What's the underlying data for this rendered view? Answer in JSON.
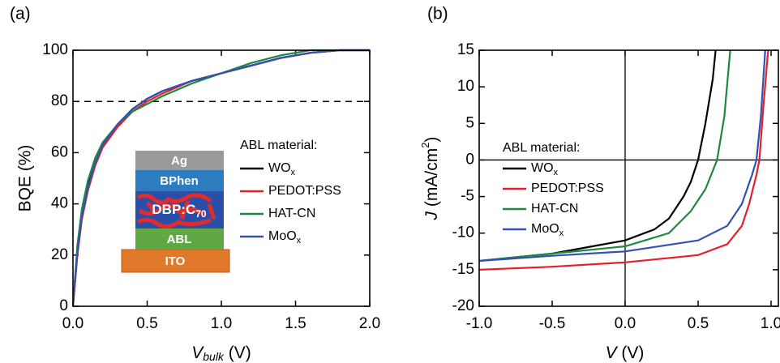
{
  "chart_data": [
    {
      "type": "line",
      "panel_label": "(a)",
      "xlabel": [
        "V",
        "bulk",
        " (V)"
      ],
      "ylabel": "BQE (%)",
      "xlim": [
        0,
        2
      ],
      "ylim": [
        0,
        100
      ],
      "xticks": [
        {
          "value": 0,
          "label": "0.0"
        },
        {
          "value": 0.5,
          "label": "0.5"
        },
        {
          "value": 1,
          "label": "1.0"
        },
        {
          "value": 1.5,
          "label": "1.5"
        },
        {
          "value": 2,
          "label": "2.0"
        }
      ],
      "yticks": [
        0,
        20,
        40,
        60,
        80,
        100
      ],
      "hline": 80,
      "legend_title": "ABL material:",
      "inset_layers": [
        [
          "Ag"
        ],
        [
          "BPhen"
        ],
        [
          "DBP:C",
          "70"
        ],
        [
          "ABL"
        ],
        [
          "ITO"
        ]
      ],
      "series": [
        {
          "name": [
            "WO",
            "x"
          ],
          "color": "#000000",
          "x": [
            0,
            0.03,
            0.06,
            0.1,
            0.15,
            0.2,
            0.3,
            0.4,
            0.5,
            0.6,
            0.8,
            1.0,
            1.2,
            1.4,
            1.6,
            1.8,
            2.0
          ],
          "values": [
            0,
            22,
            36,
            47,
            56,
            63,
            71,
            77,
            81,
            84,
            88,
            91,
            94,
            97,
            99,
            100,
            100
          ]
        },
        {
          "name": [
            "PEDOT:PSS"
          ],
          "color": "#e3202b",
          "x": [
            0,
            0.03,
            0.06,
            0.1,
            0.15,
            0.2,
            0.3,
            0.4,
            0.5,
            0.6,
            0.8,
            1.0,
            1.2,
            1.4,
            1.6,
            1.8,
            2.0
          ],
          "values": [
            0,
            20,
            34,
            45,
            55,
            62,
            70,
            76,
            80,
            83,
            88,
            91,
            94,
            97,
            99,
            100,
            100
          ]
        },
        {
          "name": [
            "HAT-CN"
          ],
          "color": "#1b8a3c",
          "x": [
            0,
            0.03,
            0.06,
            0.1,
            0.15,
            0.2,
            0.3,
            0.4,
            0.5,
            0.6,
            0.8,
            1.0,
            1.2,
            1.4,
            1.6,
            1.8,
            2.0
          ],
          "values": [
            0,
            24,
            38,
            49,
            58,
            64,
            71,
            76,
            79,
            82,
            87,
            91,
            95,
            98,
            100,
            100,
            100
          ]
        },
        {
          "name": [
            "MoO",
            "x"
          ],
          "color": "#3450b2",
          "x": [
            0,
            0.03,
            0.06,
            0.1,
            0.15,
            0.2,
            0.3,
            0.4,
            0.5,
            0.6,
            0.8,
            1.0,
            1.2,
            1.4,
            1.6,
            1.8,
            2.0
          ],
          "values": [
            0,
            21,
            35,
            46,
            56,
            63,
            71,
            77,
            81,
            84,
            88,
            91,
            94,
            97,
            99,
            100,
            100
          ]
        }
      ]
    },
    {
      "type": "line",
      "panel_label": "(b)",
      "xlabel": [
        "V",
        "",
        " (V)"
      ],
      "ylabel": [
        "J",
        " (mA/cm",
        "2",
        ")"
      ],
      "xlim": [
        -1,
        1.05
      ],
      "ylim": [
        -20,
        15
      ],
      "xticks": [
        {
          "value": -1,
          "label": "-1.0"
        },
        {
          "value": -0.5,
          "label": "-0.5"
        },
        {
          "value": 0,
          "label": "0.0"
        },
        {
          "value": 0.5,
          "label": "0.5"
        },
        {
          "value": 1,
          "label": "1.0"
        }
      ],
      "yticks": [
        -20,
        -15,
        -10,
        -5,
        0,
        5,
        10,
        15
      ],
      "zero_lines": true,
      "legend_title": "ABL material:",
      "series": [
        {
          "name": [
            "WO",
            "x"
          ],
          "color": "#000000",
          "x": [
            -1,
            -0.5,
            0,
            0.2,
            0.3,
            0.4,
            0.45,
            0.5,
            0.55,
            0.6,
            0.62
          ],
          "values": [
            -13.8,
            -12.8,
            -11,
            -9.5,
            -8,
            -5,
            -3,
            0,
            5,
            11,
            15
          ]
        },
        {
          "name": [
            "PEDOT:PSS"
          ],
          "color": "#e3202b",
          "x": [
            -1,
            -0.5,
            0,
            0.5,
            0.7,
            0.8,
            0.85,
            0.9,
            0.92,
            0.95,
            0.98
          ],
          "values": [
            -15,
            -14.6,
            -14,
            -13,
            -11.5,
            -9,
            -6,
            -2,
            0,
            8,
            15
          ]
        },
        {
          "name": [
            "HAT-CN"
          ],
          "color": "#1b8a3c",
          "x": [
            -1,
            -0.5,
            0,
            0.3,
            0.45,
            0.55,
            0.6,
            0.63,
            0.68,
            0.72
          ],
          "values": [
            -13.8,
            -12.8,
            -11.8,
            -10,
            -7,
            -4,
            -1.5,
            0,
            6,
            15
          ]
        },
        {
          "name": [
            "MoO",
            "x"
          ],
          "color": "#3450b2",
          "x": [
            -1,
            -0.5,
            0,
            0.5,
            0.7,
            0.8,
            0.87,
            0.9,
            0.93,
            0.96
          ],
          "values": [
            -13.8,
            -13.1,
            -12.5,
            -11,
            -9,
            -6,
            -2,
            0,
            6,
            15
          ]
        }
      ]
    }
  ]
}
